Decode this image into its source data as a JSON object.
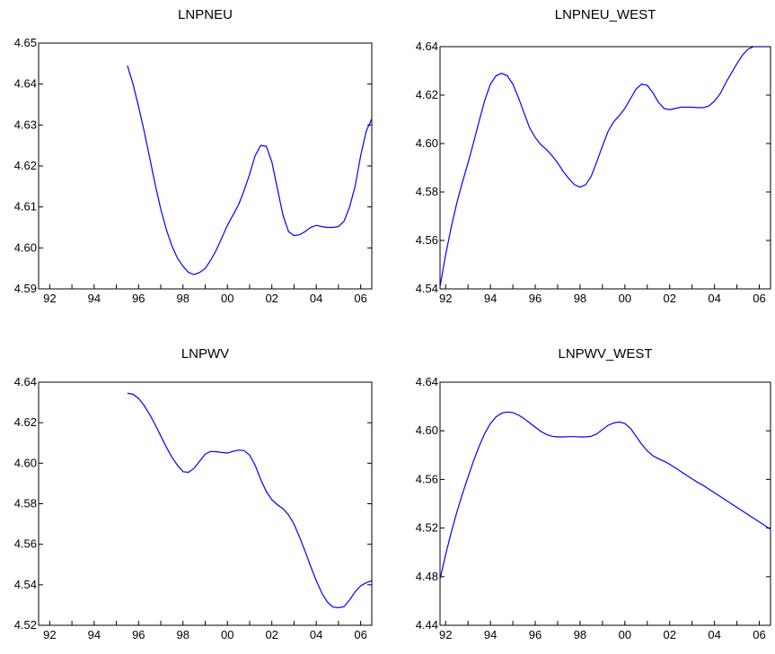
{
  "chart_data": [
    {
      "type": "line",
      "title": "LNPNEU",
      "xlabel": "",
      "ylabel": "",
      "xlim": [
        1991.5,
        2006.5
      ],
      "ylim": [
        4.59,
        4.65
      ],
      "x_ticks": [
        "92",
        "94",
        "96",
        "98",
        "00",
        "02",
        "04",
        "06"
      ],
      "y_ticks": [
        "4.59",
        "4.60",
        "4.61",
        "4.62",
        "4.63",
        "4.64",
        "4.65"
      ],
      "grid": false,
      "series": [
        {
          "color": "#0000ff",
          "x": [
            1995.5,
            1995.75,
            1996.0,
            1996.25,
            1996.5,
            1996.75,
            1997.0,
            1997.25,
            1997.5,
            1997.75,
            1998.0,
            1998.25,
            1998.5,
            1998.75,
            1999.0,
            1999.25,
            1999.5,
            1999.75,
            2000.0,
            2000.25,
            2000.5,
            2000.75,
            2001.0,
            2001.25,
            2001.5,
            2001.75,
            2002.0,
            2002.25,
            2002.5,
            2002.75,
            2003.0,
            2003.25,
            2003.5,
            2003.75,
            2004.0,
            2004.25,
            2004.5,
            2004.75,
            2005.0,
            2005.25,
            2005.5,
            2005.75,
            2006.0,
            2006.25,
            2006.5
          ],
          "y": [
            4.6445,
            4.64,
            4.6345,
            4.6285,
            4.622,
            4.6155,
            4.6095,
            4.6045,
            4.6005,
            4.5975,
            4.5955,
            4.594,
            4.5935,
            4.594,
            4.595,
            4.597,
            4.5995,
            4.6025,
            4.6055,
            4.608,
            4.6105,
            4.614,
            4.618,
            4.6225,
            4.625,
            4.6248,
            4.621,
            4.6145,
            4.608,
            4.604,
            4.603,
            4.6032,
            4.604,
            4.605,
            4.6055,
            4.6052,
            4.605,
            4.605,
            4.6052,
            4.6065,
            4.61,
            4.615,
            4.6225,
            4.6285,
            4.6315
          ]
        }
      ]
    },
    {
      "type": "line",
      "title": "LNPNEU_WEST",
      "xlabel": "",
      "ylabel": "",
      "xlim": [
        1991.75,
        2006.5
      ],
      "ylim": [
        4.54,
        4.64
      ],
      "x_ticks": [
        "92",
        "94",
        "96",
        "98",
        "00",
        "02",
        "04",
        "06"
      ],
      "y_ticks": [
        "4.54",
        "4.56",
        "4.58",
        "4.60",
        "4.62",
        "4.64"
      ],
      "grid": false,
      "series": [
        {
          "color": "#0000ff",
          "x": [
            1991.75,
            1992.0,
            1992.25,
            1992.5,
            1992.75,
            1993.0,
            1993.25,
            1993.5,
            1993.75,
            1994.0,
            1994.25,
            1994.5,
            1994.75,
            1995.0,
            1995.25,
            1995.5,
            1995.75,
            1996.0,
            1996.25,
            1996.5,
            1996.75,
            1997.0,
            1997.25,
            1997.5,
            1997.75,
            1998.0,
            1998.25,
            1998.5,
            1998.75,
            1999.0,
            1999.25,
            1999.5,
            1999.75,
            2000.0,
            2000.25,
            2000.5,
            2000.75,
            2001.0,
            2001.25,
            2001.5,
            2001.75,
            2002.0,
            2002.25,
            2002.5,
            2002.75,
            2003.0,
            2003.25,
            2003.5,
            2003.75,
            2004.0,
            2004.25,
            2004.5,
            2004.75,
            2005.0,
            2005.25,
            2005.5,
            2005.75,
            2006.0,
            2006.25,
            2006.5
          ],
          "y": [
            4.541,
            4.554,
            4.5655,
            4.5755,
            4.584,
            4.592,
            4.6005,
            4.6095,
            4.618,
            4.6245,
            4.628,
            4.629,
            4.628,
            4.6245,
            4.619,
            4.6125,
            4.6065,
            4.6025,
            4.5995,
            4.5975,
            4.595,
            4.592,
            4.5885,
            4.5855,
            4.583,
            4.582,
            4.583,
            4.5865,
            4.5925,
            4.599,
            4.605,
            4.609,
            4.6115,
            4.6145,
            4.6185,
            4.6225,
            4.6245,
            4.624,
            4.621,
            4.617,
            4.6145,
            4.614,
            4.6145,
            4.615,
            4.615,
            4.615,
            4.6148,
            4.6148,
            4.6155,
            4.6175,
            4.6205,
            4.625,
            4.629,
            4.633,
            4.6365,
            4.639,
            4.64,
            4.64,
            4.64,
            4.64
          ]
        }
      ]
    },
    {
      "type": "line",
      "title": "LNPWV",
      "xlabel": "",
      "ylabel": "",
      "xlim": [
        1991.5,
        2006.5
      ],
      "ylim": [
        4.52,
        4.64
      ],
      "x_ticks": [
        "92",
        "94",
        "96",
        "98",
        "00",
        "02",
        "04",
        "06"
      ],
      "y_ticks": [
        "4.52",
        "4.54",
        "4.56",
        "4.58",
        "4.60",
        "4.62",
        "4.64"
      ],
      "grid": false,
      "series": [
        {
          "color": "#0000ff",
          "x": [
            1995.5,
            1995.75,
            1996.0,
            1996.25,
            1996.5,
            1996.75,
            1997.0,
            1997.25,
            1997.5,
            1997.75,
            1998.0,
            1998.25,
            1998.5,
            1998.75,
            1999.0,
            1999.25,
            1999.5,
            1999.75,
            2000.0,
            2000.25,
            2000.5,
            2000.75,
            2001.0,
            2001.25,
            2001.5,
            2001.75,
            2002.0,
            2002.25,
            2002.5,
            2002.75,
            2003.0,
            2003.25,
            2003.5,
            2003.75,
            2004.0,
            2004.25,
            2004.5,
            2004.75,
            2005.0,
            2005.25,
            2005.5,
            2005.75,
            2006.0,
            2006.25,
            2006.5
          ],
          "y": [
            4.6345,
            4.634,
            4.632,
            4.6285,
            4.624,
            4.619,
            4.6135,
            4.608,
            4.603,
            4.599,
            4.5958,
            4.5955,
            4.5975,
            4.601,
            4.6045,
            4.6058,
            4.6057,
            4.6053,
            4.605,
            4.6058,
            4.6065,
            4.6062,
            4.604,
            4.599,
            4.592,
            4.586,
            4.582,
            4.5795,
            4.5775,
            4.5745,
            4.57,
            4.5635,
            4.5565,
            4.549,
            4.542,
            4.536,
            4.5315,
            4.529,
            4.5287,
            4.5292,
            4.5325,
            4.5365,
            4.5395,
            4.541,
            4.542
          ]
        }
      ]
    },
    {
      "type": "line",
      "title": "LNPWV_WEST",
      "xlabel": "",
      "ylabel": "",
      "xlim": [
        1991.75,
        2006.5
      ],
      "ylim": [
        4.44,
        4.64
      ],
      "x_ticks": [
        "92",
        "94",
        "96",
        "98",
        "00",
        "02",
        "04",
        "06"
      ],
      "y_ticks": [
        "4.44",
        "4.48",
        "4.52",
        "4.56",
        "4.60",
        "4.64"
      ],
      "grid": false,
      "series": [
        {
          "color": "#0000ff",
          "x": [
            1991.75,
            1992.0,
            1992.25,
            1992.5,
            1992.75,
            1993.0,
            1993.25,
            1993.5,
            1993.75,
            1994.0,
            1994.25,
            1994.5,
            1994.75,
            1995.0,
            1995.25,
            1995.5,
            1995.75,
            1996.0,
            1996.25,
            1996.5,
            1996.75,
            1997.0,
            1997.25,
            1997.5,
            1997.75,
            1998.0,
            1998.25,
            1998.5,
            1998.75,
            1999.0,
            1999.25,
            1999.5,
            1999.75,
            2000.0,
            2000.25,
            2000.5,
            2000.75,
            2001.0,
            2001.25,
            2001.5,
            2001.75,
            2002.0,
            2002.25,
            2002.5,
            2002.75,
            2003.0,
            2003.25,
            2003.5,
            2003.75,
            2004.0,
            2004.25,
            2004.5,
            2004.75,
            2005.0,
            2005.25,
            2005.5,
            2005.75,
            2006.0,
            2006.25,
            2006.5
          ],
          "y": [
            4.478,
            4.498,
            4.5165,
            4.533,
            4.548,
            4.562,
            4.5755,
            4.5875,
            4.598,
            4.606,
            4.6115,
            4.6145,
            4.6155,
            4.615,
            4.613,
            4.61,
            4.6065,
            4.603,
            4.5995,
            4.597,
            4.5955,
            4.595,
            4.595,
            4.5952,
            4.5952,
            4.595,
            4.595,
            4.5955,
            4.5975,
            4.601,
            4.6045,
            4.6065,
            4.6072,
            4.606,
            4.602,
            4.5955,
            4.589,
            4.5835,
            4.5795,
            4.577,
            4.575,
            4.5725,
            4.5695,
            4.5665,
            4.5635,
            4.5605,
            4.5575,
            4.555,
            4.552,
            4.549,
            4.546,
            4.543,
            4.54,
            4.537,
            4.534,
            4.531,
            4.528,
            4.525,
            4.522,
            4.519
          ]
        }
      ]
    }
  ]
}
